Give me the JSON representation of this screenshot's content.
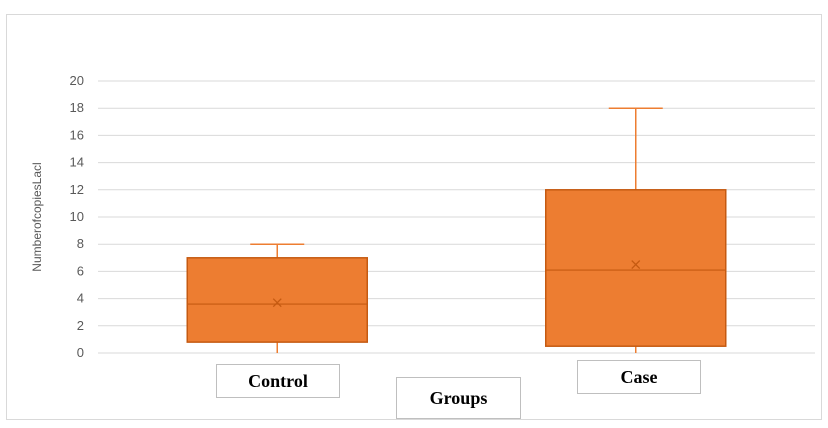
{
  "chart_data": {
    "type": "box",
    "xlabel": "Groups",
    "ylabel": "NumberofcopiesLacl",
    "ylim": [
      0,
      20
    ],
    "yticks": [
      0,
      2,
      4,
      6,
      8,
      10,
      12,
      14,
      16,
      18,
      20
    ],
    "grid": true,
    "legend": "none",
    "color": "#ed7d31",
    "categories": [
      "Control",
      "Case"
    ],
    "boxes": [
      {
        "category": "Control",
        "min": 0,
        "q1": 0.8,
        "median": 3.6,
        "q3": 7,
        "max": 8,
        "mean": 3.7
      },
      {
        "category": "Case",
        "min": 0,
        "q1": 0.5,
        "median": 6.1,
        "q3": 12,
        "max": 18,
        "mean": 6.5
      }
    ]
  }
}
